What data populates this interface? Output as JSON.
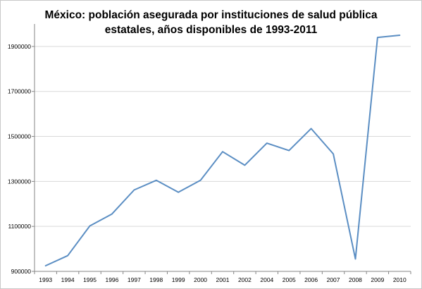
{
  "chart_data": {
    "type": "line",
    "title": "México: población asegurada por instituciones de salud pública estatales, años disponibles de 1993-2011",
    "title_lines": [
      "México: población asegurada por instituciones de salud pública",
      "estatales, años disponibles de 1993-2011"
    ],
    "xlabel": "",
    "ylabel": "",
    "categories": [
      "1993",
      "1994",
      "1995",
      "1996",
      "1997",
      "1998",
      "1999",
      "2000",
      "2001",
      "2002",
      "2004",
      "2005",
      "2006",
      "2007",
      "2008",
      "2009",
      "2010"
    ],
    "series": [
      {
        "values": [
          925000,
          970000,
          1102000,
          1155000,
          1262000,
          1305000,
          1252000,
          1305000,
          1432000,
          1372000,
          1470000,
          1437000,
          1535000,
          1422000,
          955000,
          1940000,
          1950000
        ]
      }
    ],
    "ylim": [
      900000,
      2000000
    ],
    "yticks": [
      "900000",
      "1100000",
      "1300000",
      "1500000",
      "1700000",
      "1900000"
    ],
    "ytick_values": [
      900000,
      1100000,
      1300000,
      1500000,
      1700000,
      1900000
    ],
    "grid": true,
    "legend": "none",
    "colors": {
      "line": "#5b8ec3",
      "grid": "#d9d9d9",
      "axis": "#868686"
    }
  }
}
